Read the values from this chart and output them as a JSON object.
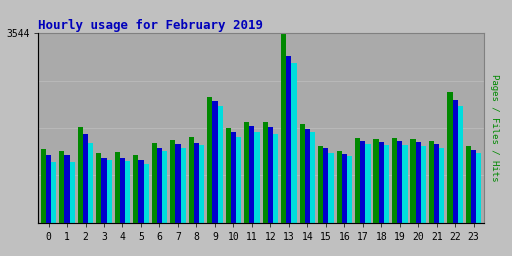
{
  "title": "Hourly usage for February 2019",
  "ymax_label": "3544",
  "hours": [
    0,
    1,
    2,
    3,
    4,
    5,
    6,
    7,
    8,
    9,
    10,
    11,
    12,
    13,
    14,
    15,
    16,
    17,
    18,
    19,
    20,
    21,
    22,
    23
  ],
  "pages": [
    1380,
    1350,
    1790,
    1310,
    1320,
    1270,
    1490,
    1540,
    1600,
    2360,
    1770,
    1880,
    1880,
    3544,
    1850,
    1440,
    1340,
    1590,
    1570,
    1580,
    1560,
    1520,
    2440,
    1430
  ],
  "files": [
    1260,
    1260,
    1660,
    1220,
    1210,
    1170,
    1400,
    1470,
    1500,
    2270,
    1700,
    1810,
    1800,
    3110,
    1760,
    1390,
    1290,
    1530,
    1510,
    1520,
    1510,
    1470,
    2300,
    1360
  ],
  "hits": [
    1130,
    1130,
    1490,
    1170,
    1150,
    1090,
    1340,
    1390,
    1450,
    2190,
    1610,
    1700,
    1660,
    2980,
    1700,
    1310,
    1240,
    1480,
    1450,
    1460,
    1440,
    1400,
    2180,
    1310
  ],
  "color_pages": "#008800",
  "color_files": "#0000cc",
  "color_hits": "#00dddd",
  "bg_color": "#c0c0c0",
  "plot_bg": "#aaaaaa",
  "title_color": "#0000bb",
  "bar_width": 0.28,
  "ylim_max": 3544,
  "grid_color": "#bbbbbb",
  "right_label": "Pages / Files / Hits",
  "right_label_pages_color": "#008800",
  "right_label_files_color": "#0000cc",
  "right_label_hits_color": "#00cccc",
  "spine_color": "#808080",
  "tick_label_color": "#000000",
  "tick_fontsize": 7,
  "title_fontsize": 9
}
